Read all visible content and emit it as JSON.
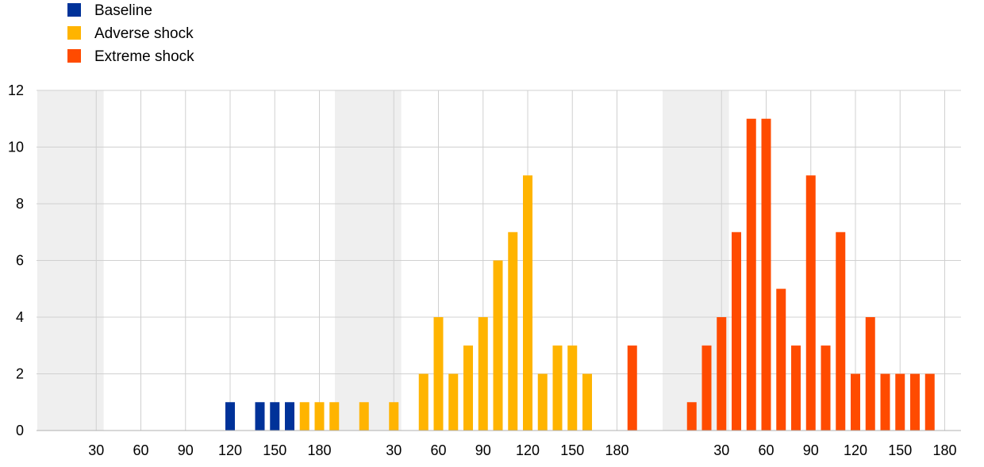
{
  "chart_data": {
    "type": "bar",
    "title": "",
    "xlabel": "",
    "ylabel": "",
    "ylim": [
      0,
      12
    ],
    "yticks": [
      "0",
      "2",
      "4",
      "6",
      "8",
      "10",
      "12"
    ],
    "grid": true,
    "legend_position": "top-left",
    "panel_xticks": [
      "30",
      "60",
      "90",
      "120",
      "150",
      "180"
    ],
    "shaded_range_days": [
      0,
      35
    ],
    "series": [
      {
        "name": "Baseline",
        "color": "#003299",
        "x": [
          120,
          140,
          150,
          160
        ],
        "values": [
          1,
          1,
          1,
          1
        ]
      },
      {
        "name": "Adverse shock",
        "color": "#FFB400",
        "x": [
          -30,
          -20,
          -10,
          10,
          30,
          50,
          60,
          70,
          80,
          90,
          100,
          110,
          120,
          130,
          140,
          150,
          160
        ],
        "values": [
          1,
          1,
          1,
          1,
          1,
          2,
          4,
          2,
          3,
          4,
          6,
          7,
          9,
          2,
          3,
          3,
          2
        ]
      },
      {
        "name": "Extreme shock",
        "color": "#FF4B00",
        "x": [
          -30,
          10,
          20,
          30,
          40,
          50,
          60,
          70,
          80,
          90,
          100,
          110,
          120,
          130,
          140,
          150,
          160,
          170
        ],
        "values": [
          3,
          1,
          3,
          4,
          7,
          11,
          11,
          5,
          3,
          9,
          3,
          7,
          2,
          4,
          2,
          2,
          2,
          2
        ]
      }
    ]
  }
}
